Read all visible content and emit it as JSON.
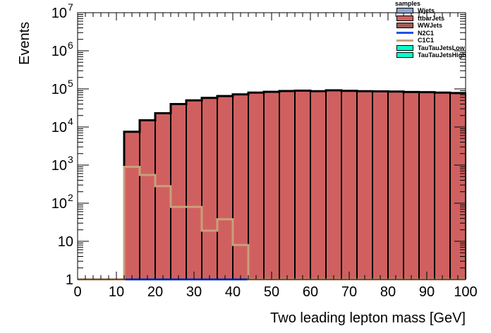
{
  "chart_data": {
    "type": "bar",
    "stacked_histogram": true,
    "title": "",
    "xlabel": "Two leading lepton mass [GeV]",
    "ylabel": "Events",
    "xlim": [
      0,
      100
    ],
    "ylim": [
      1,
      10000000
    ],
    "yscale": "log",
    "bin_edges": [
      0,
      4,
      8,
      12,
      16,
      20,
      24,
      28,
      32,
      36,
      40,
      44,
      48,
      52,
      56,
      60,
      64,
      68,
      72,
      76,
      80,
      84,
      88,
      92,
      96,
      100
    ],
    "x_ticks": [
      "0",
      "10",
      "20",
      "30",
      "40",
      "50",
      "60",
      "70",
      "80",
      "90",
      "100"
    ],
    "y_ticks": [
      {
        "base": "1",
        "exp": ""
      },
      {
        "base": "10",
        "exp": ""
      },
      {
        "base": "10",
        "exp": "2"
      },
      {
        "base": "10",
        "exp": "3"
      },
      {
        "base": "10",
        "exp": "4"
      },
      {
        "base": "10",
        "exp": "5"
      },
      {
        "base": "10",
        "exp": "6"
      },
      {
        "base": "10",
        "exp": "7"
      }
    ],
    "legend_title": "samples",
    "legend_position": "top-right",
    "series": [
      {
        "name": "Wjets",
        "kind": "fill",
        "color": "#8ea6cf",
        "values": [
          0,
          0,
          0,
          0,
          0,
          0,
          0,
          0,
          0,
          0,
          0,
          0,
          0,
          0,
          0,
          0,
          0,
          0,
          0,
          0,
          0,
          0,
          0,
          0,
          0
        ]
      },
      {
        "name": "ttbarJets",
        "kind": "fill",
        "color": "#d06060",
        "values": [
          0,
          0,
          0,
          7500,
          15000,
          23000,
          40000,
          50000,
          58000,
          65000,
          72000,
          80000,
          84000,
          88000,
          90000,
          87000,
          92000,
          89000,
          87000,
          86000,
          85000,
          83000,
          82000,
          80000,
          78000
        ]
      },
      {
        "name": "WWJets",
        "kind": "fill",
        "color": "#a05a52",
        "values": [
          0,
          0,
          0,
          0,
          0,
          0,
          0,
          0,
          0,
          0,
          0,
          0,
          0,
          0,
          0,
          0,
          0,
          0,
          0,
          0,
          0,
          0,
          0,
          0,
          0
        ]
      },
      {
        "name": "N2C1",
        "kind": "line",
        "color": "#2050e6",
        "values": [
          0,
          0,
          0,
          1,
          1,
          1,
          1,
          1,
          1,
          1,
          1,
          1,
          0,
          0,
          0,
          0,
          0,
          0,
          0,
          0,
          0,
          0,
          0,
          0,
          0
        ]
      },
      {
        "name": "C1C1",
        "kind": "line",
        "color": "#c8a07a",
        "values": [
          1,
          1,
          1,
          900,
          550,
          280,
          80,
          80,
          19,
          38,
          8,
          1,
          0,
          0,
          0,
          0,
          0,
          0,
          0,
          0,
          0,
          0,
          0,
          0,
          0
        ]
      },
      {
        "name": "TauTauJetsLow",
        "kind": "fill",
        "color": "#00ffcc",
        "values": [
          0,
          0,
          0,
          0,
          0,
          1.4,
          1.4,
          0,
          0,
          0,
          0,
          0,
          1.5,
          4.5,
          2.3,
          7,
          7,
          8,
          15,
          11,
          25,
          21,
          2.3,
          0,
          0
        ]
      },
      {
        "name": "TauTauJetsHigh",
        "kind": "fill",
        "color": "#00ffcc",
        "values": [
          0,
          0,
          0,
          0,
          0,
          0,
          0,
          0,
          0,
          0,
          0,
          0,
          0,
          0,
          0,
          0,
          0,
          0,
          0,
          0,
          0,
          0,
          0,
          0,
          0
        ]
      }
    ],
    "total_line_color": "#000000"
  }
}
